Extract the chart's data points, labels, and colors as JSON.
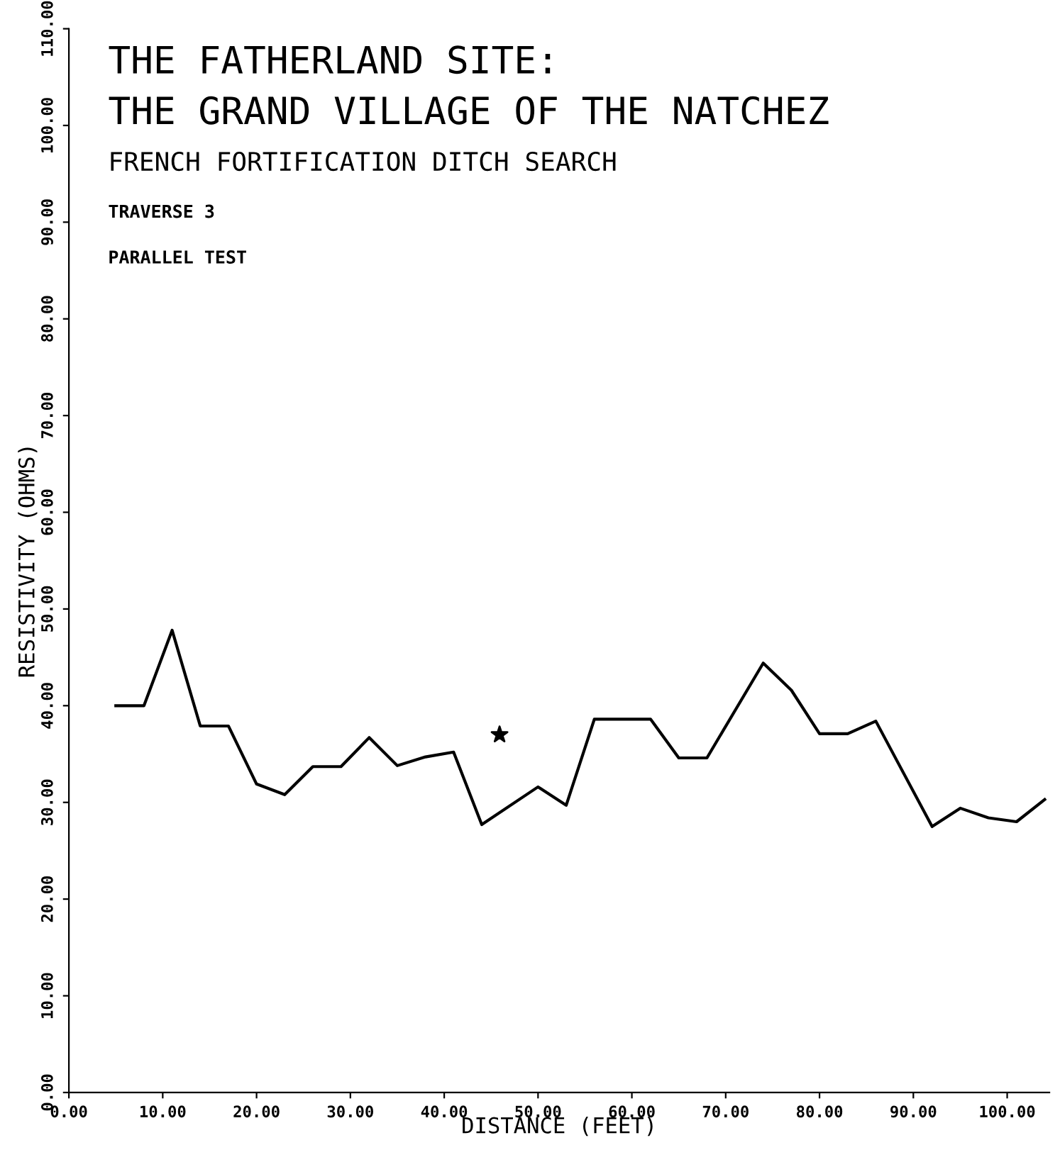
{
  "chart_data": {
    "type": "line",
    "title": "THE FATHERLAND SITE:\nTHE GRAND VILLAGE OF THE NATCHEZ",
    "subtitle": "FRENCH FORTIFICATION DITCH SEARCH",
    "annotations": [
      "TRAVERSE 3",
      "PARALLEL TEST"
    ],
    "xlabel": "DISTANCE (FEET)",
    "ylabel": "RESISTIVITY (OHMS)",
    "series": [
      {
        "color": "#000000",
        "x": [
          5,
          8,
          11,
          14,
          17,
          20,
          23,
          26,
          29,
          32,
          35,
          38,
          41,
          44,
          50,
          53,
          56,
          62,
          65,
          68,
          74,
          77,
          80,
          83,
          86,
          92,
          95,
          98,
          101,
          104
        ],
        "values": [
          40,
          40,
          47.8,
          37.9,
          37.9,
          31.9,
          30.8,
          33.7,
          33.7,
          36.7,
          33.8,
          34.7,
          35.2,
          27.7,
          31.6,
          29.7,
          38.6,
          38.6,
          34.6,
          34.6,
          44.4,
          41.6,
          37.1,
          37.1,
          38.4,
          27.5,
          29.4,
          28.4,
          28.0,
          30.3
        ]
      },
      {
        "type": "scatter",
        "color": "#000000",
        "marker": "star",
        "x": [
          45.9
        ],
        "values": [
          37.0
        ]
      }
    ],
    "xlim": [
      0,
      104.5
    ],
    "ylim": [
      0,
      110
    ],
    "xticks": [
      {
        "value": 0,
        "label": "0.00"
      },
      {
        "value": 10,
        "label": "10.00"
      },
      {
        "value": 20,
        "label": "20.00"
      },
      {
        "value": 30,
        "label": "30.00"
      },
      {
        "value": 40,
        "label": "40.00"
      },
      {
        "value": 50,
        "label": "50.00"
      },
      {
        "value": 60,
        "label": "60.00"
      },
      {
        "value": 70,
        "label": "70.00"
      },
      {
        "value": 80,
        "label": "80.00"
      },
      {
        "value": 90,
        "label": "90.00"
      },
      {
        "value": 100,
        "label": "100.00"
      }
    ],
    "yticks": [
      {
        "value": 0,
        "label": "0.00"
      },
      {
        "value": 10,
        "label": "10.00"
      },
      {
        "value": 20,
        "label": "20.00"
      },
      {
        "value": 30,
        "label": "30.00"
      },
      {
        "value": 40,
        "label": "40.00"
      },
      {
        "value": 50,
        "label": "50.00"
      },
      {
        "value": 60,
        "label": "60.00"
      },
      {
        "value": 70,
        "label": "70.00"
      },
      {
        "value": 80,
        "label": "80.00"
      },
      {
        "value": 90,
        "label": "90.00"
      },
      {
        "value": 100,
        "label": "100.00"
      },
      {
        "value": 110,
        "label": "110.00"
      }
    ],
    "grid": false,
    "legend": false
  }
}
